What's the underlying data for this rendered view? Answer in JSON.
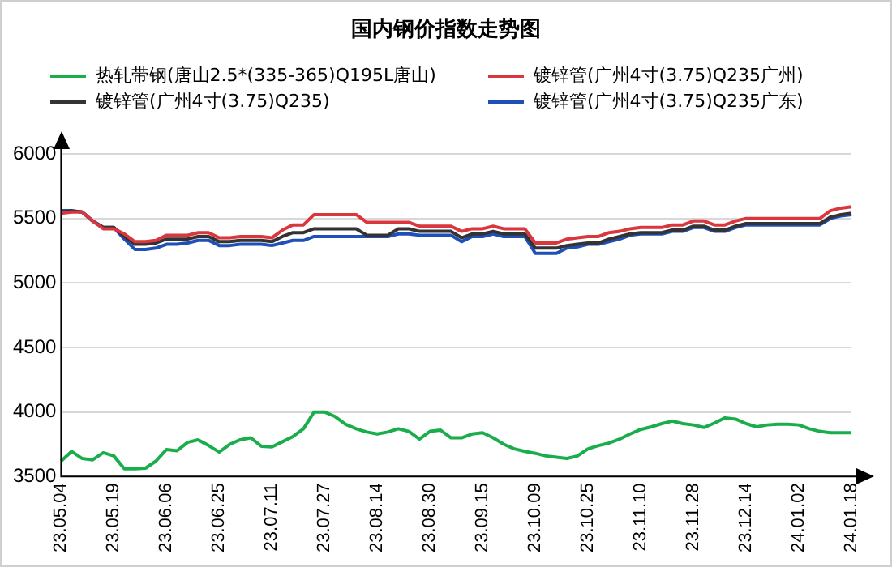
{
  "chart_data": {
    "type": "line",
    "title": "国内钢价指数走势图",
    "categories": [
      "23.05.04",
      null,
      null,
      null,
      null,
      "23.05.19",
      null,
      null,
      null,
      null,
      "23.06.06",
      null,
      null,
      null,
      null,
      "23.06.25",
      null,
      null,
      null,
      null,
      "23.07.11",
      null,
      null,
      null,
      null,
      "23.07.27",
      null,
      null,
      null,
      null,
      "23.08.14",
      null,
      null,
      null,
      null,
      "23.08.30",
      null,
      null,
      null,
      null,
      "23.09.15",
      null,
      null,
      null,
      null,
      "23.10.09",
      null,
      null,
      null,
      null,
      "23.10.25",
      null,
      null,
      null,
      null,
      "23.11.10",
      null,
      null,
      null,
      null,
      "23.11.28",
      null,
      null,
      null,
      null,
      "23.12.14",
      null,
      null,
      null,
      null,
      "24.01.02",
      null,
      null,
      null,
      null,
      "24.01.18"
    ],
    "series": [
      {
        "name": "热轧带钢(唐山2.5*(335-365)Q195L唐山)",
        "color": "#1aad4b",
        "values": [
          3620,
          3695,
          3640,
          3630,
          3685,
          3660,
          3560,
          3560,
          3565,
          3620,
          3710,
          3700,
          3765,
          3785,
          3740,
          3690,
          3750,
          3785,
          3800,
          3735,
          3730,
          3770,
          3810,
          3870,
          4000,
          4000,
          3965,
          3905,
          3870,
          3845,
          3830,
          3845,
          3870,
          3850,
          3790,
          3850,
          3860,
          3800,
          3800,
          3830,
          3840,
          3800,
          3750,
          3715,
          3695,
          3680,
          3660,
          3650,
          3640,
          3660,
          3715,
          3740,
          3760,
          3790,
          3830,
          3865,
          3885,
          3910,
          3930,
          3910,
          3900,
          3880,
          3915,
          3955,
          3945,
          3910,
          3885,
          3900,
          3905,
          3905,
          3900,
          3870,
          3850,
          3840,
          3840,
          3840
        ]
      },
      {
        "name": "镀锌管(广州4寸(3.75)Q235广州)",
        "color": "#d9363e",
        "values": [
          5540,
          5550,
          5550,
          5480,
          5420,
          5420,
          5380,
          5320,
          5320,
          5330,
          5370,
          5370,
          5370,
          5390,
          5390,
          5350,
          5350,
          5360,
          5360,
          5360,
          5350,
          5410,
          5450,
          5450,
          5530,
          5530,
          5530,
          5530,
          5530,
          5470,
          5470,
          5470,
          5470,
          5470,
          5440,
          5440,
          5440,
          5440,
          5400,
          5420,
          5420,
          5440,
          5420,
          5420,
          5420,
          5310,
          5310,
          5310,
          5340,
          5350,
          5360,
          5360,
          5390,
          5400,
          5420,
          5430,
          5430,
          5430,
          5450,
          5450,
          5480,
          5480,
          5450,
          5450,
          5480,
          5500,
          5500,
          5500,
          5500,
          5500,
          5500,
          5500,
          5500,
          5560,
          5580,
          5590
        ]
      },
      {
        "name": "镀锌管(广州4寸(3.75)Q235)",
        "color": "#333333",
        "values": [
          5550,
          5560,
          5550,
          5480,
          5430,
          5430,
          5360,
          5300,
          5300,
          5310,
          5340,
          5340,
          5340,
          5360,
          5360,
          5320,
          5320,
          5330,
          5330,
          5330,
          5320,
          5360,
          5390,
          5390,
          5420,
          5420,
          5420,
          5420,
          5420,
          5370,
          5370,
          5370,
          5420,
          5420,
          5400,
          5400,
          5400,
          5400,
          5350,
          5380,
          5380,
          5400,
          5380,
          5380,
          5380,
          5270,
          5270,
          5270,
          5290,
          5300,
          5310,
          5310,
          5340,
          5360,
          5380,
          5390,
          5390,
          5390,
          5410,
          5410,
          5440,
          5440,
          5410,
          5410,
          5440,
          5460,
          5460,
          5460,
          5460,
          5460,
          5460,
          5460,
          5460,
          5510,
          5530,
          5540
        ]
      },
      {
        "name": "镀锌管(广州4寸(3.75)Q235广东)",
        "color": "#1f4fb8",
        "values": [
          5560,
          5560,
          5550,
          5480,
          5430,
          5430,
          5340,
          5260,
          5260,
          5270,
          5300,
          5300,
          5310,
          5330,
          5330,
          5290,
          5290,
          5300,
          5300,
          5300,
          5290,
          5310,
          5330,
          5330,
          5360,
          5360,
          5360,
          5360,
          5360,
          5360,
          5360,
          5360,
          5380,
          5380,
          5370,
          5370,
          5370,
          5370,
          5320,
          5360,
          5360,
          5380,
          5360,
          5360,
          5360,
          5230,
          5230,
          5230,
          5270,
          5280,
          5300,
          5300,
          5320,
          5340,
          5370,
          5380,
          5380,
          5380,
          5400,
          5400,
          5430,
          5430,
          5400,
          5400,
          5430,
          5450,
          5450,
          5450,
          5450,
          5450,
          5450,
          5450,
          5450,
          5500,
          5520,
          5530
        ]
      }
    ],
    "ylim": [
      3500,
      6000
    ],
    "yticks": [
      3500,
      4000,
      4500,
      5000,
      5500,
      6000
    ],
    "grid": "y",
    "legend": "top",
    "marker": "none",
    "line_style": "solid"
  }
}
